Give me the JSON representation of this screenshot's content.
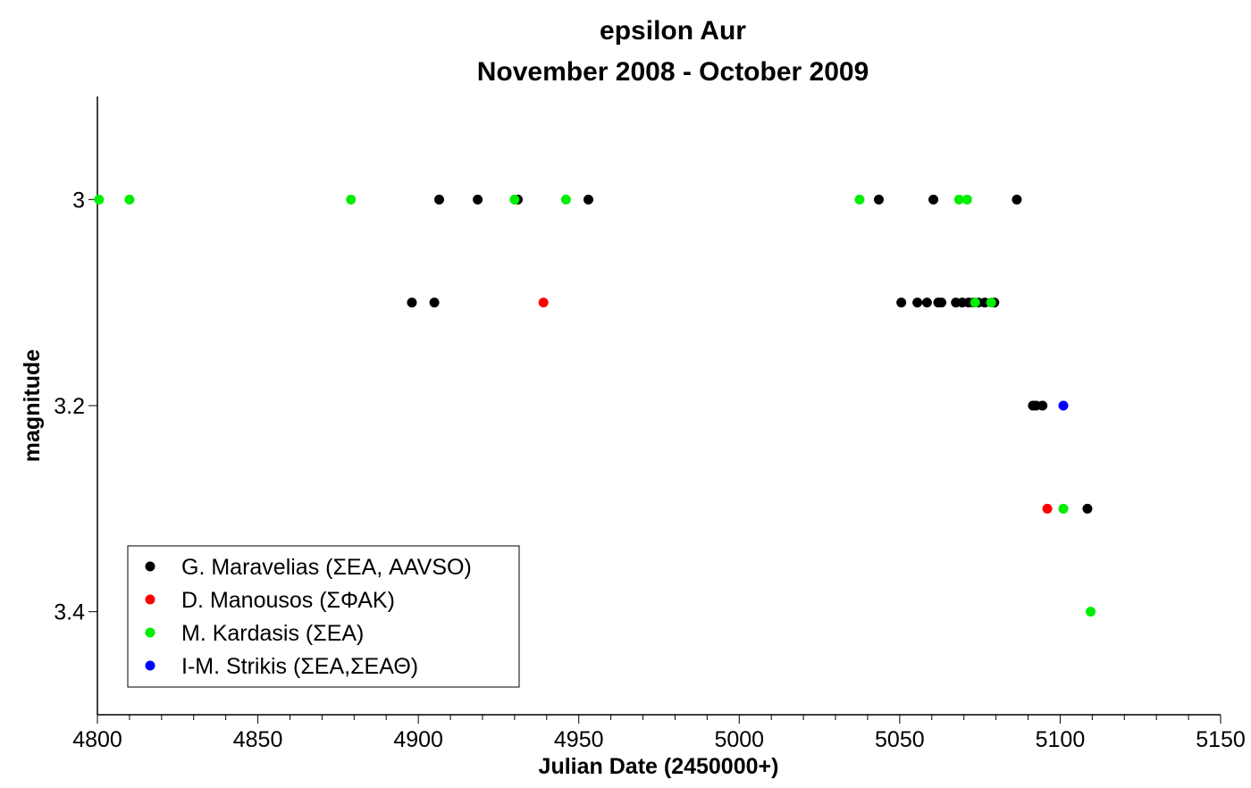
{
  "chart_data": {
    "type": "scatter",
    "title": "epsilon Aur",
    "subtitle": "November 2008 - October 2009",
    "xlabel": "Julian Date (2450000+)",
    "ylabel": "magnitude",
    "xlim": [
      4800,
      5150
    ],
    "ylim": [
      2.9,
      3.5
    ],
    "y_inverted": true,
    "x_ticks": [
      4800,
      4850,
      4900,
      4950,
      5000,
      5050,
      5100,
      5150
    ],
    "x_minor_step": 10,
    "y_ticks": [
      3,
      3.2,
      3.4
    ],
    "y_tick_labels": [
      "3",
      "3.2",
      "3.4"
    ],
    "grid": false,
    "legend_position": "bottom-left",
    "series": [
      {
        "name": "G. Maravelias (ΣΕΑ, AAVSO)",
        "color": "#000000",
        "points": [
          [
            4906.5,
            3.0
          ],
          [
            4918.5,
            3.0
          ],
          [
            4931,
            3.0
          ],
          [
            4953,
            3.0
          ],
          [
            5043.5,
            3.0
          ],
          [
            5060.5,
            3.0
          ],
          [
            5086.5,
            3.0
          ],
          [
            4898,
            3.1
          ],
          [
            4905,
            3.1
          ],
          [
            5050.5,
            3.1
          ],
          [
            5055.5,
            3.1
          ],
          [
            5058.5,
            3.1
          ],
          [
            5062,
            3.1
          ],
          [
            5063,
            3.1
          ],
          [
            5067.5,
            3.1
          ],
          [
            5069.5,
            3.1
          ],
          [
            5071.5,
            3.1
          ],
          [
            5073,
            3.1
          ],
          [
            5074.5,
            3.1
          ],
          [
            5076.5,
            3.1
          ],
          [
            5079.5,
            3.1
          ],
          [
            5091.5,
            3.2
          ],
          [
            5092.5,
            3.2
          ],
          [
            5094.5,
            3.2
          ],
          [
            5108.5,
            3.3
          ]
        ]
      },
      {
        "name": "D. Manousos (ΣΦΑΚ)",
        "color": "#ff0000",
        "points": [
          [
            4939,
            3.1
          ],
          [
            5096,
            3.3
          ]
        ]
      },
      {
        "name": "M. Kardasis (ΣΕΑ)",
        "color": "#00ee00",
        "points": [
          [
            4800.5,
            3.0
          ],
          [
            4810,
            3.0
          ],
          [
            4879,
            3.0
          ],
          [
            4930,
            3.0
          ],
          [
            4946,
            3.0
          ],
          [
            5037.5,
            3.0
          ],
          [
            5068.5,
            3.0
          ],
          [
            5071,
            3.0
          ],
          [
            5073.5,
            3.1
          ],
          [
            5078.5,
            3.1
          ],
          [
            5101,
            3.3
          ],
          [
            5109.5,
            3.4
          ]
        ]
      },
      {
        "name": "I-M. Strikis (ΣΕΑ,ΣΕΑΘ)",
        "color": "#0000ff",
        "points": [
          [
            5101,
            3.2
          ]
        ]
      }
    ]
  }
}
